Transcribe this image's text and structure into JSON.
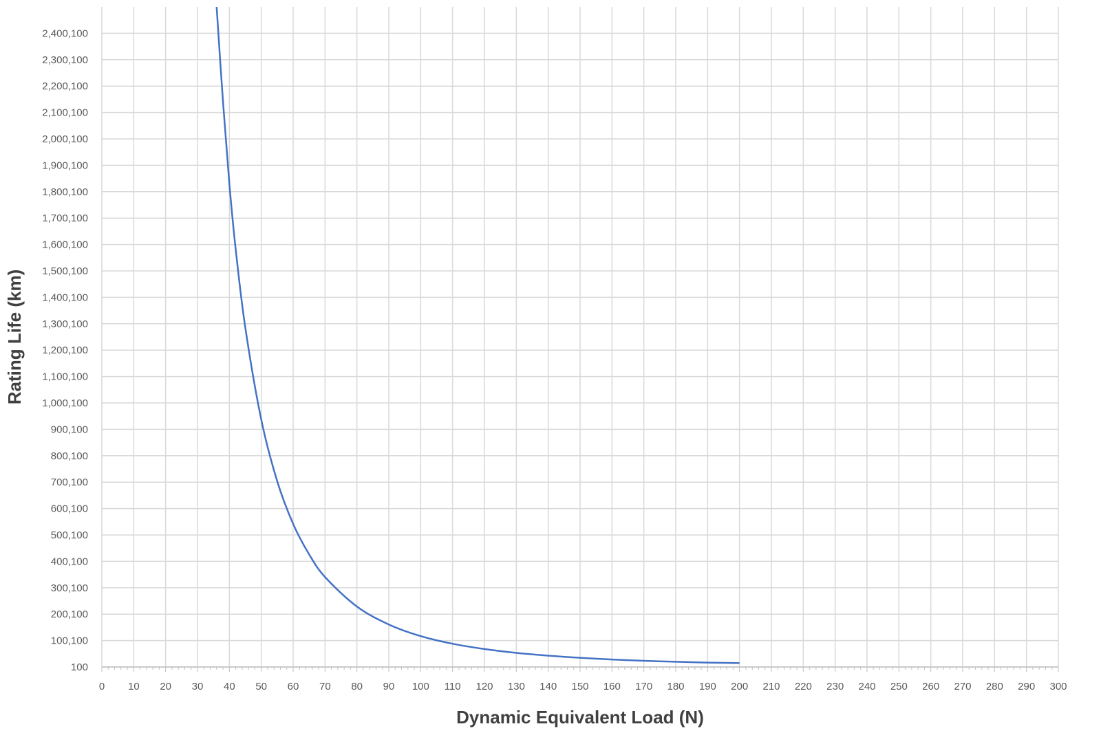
{
  "chart_data": {
    "type": "line",
    "title": "",
    "xlabel": "Dynamic Equivalent Load (N)",
    "ylabel": "Rating Life (km)",
    "xlim": [
      0,
      300
    ],
    "ylim": [
      100,
      2500100
    ],
    "x_ticks": [
      "0",
      "10",
      "20",
      "30",
      "40",
      "50",
      "60",
      "70",
      "80",
      "90",
      "100",
      "110",
      "120",
      "130",
      "140",
      "150",
      "160",
      "170",
      "180",
      "190",
      "200",
      "210",
      "220",
      "230",
      "240",
      "250",
      "260",
      "270",
      "280",
      "290",
      "300"
    ],
    "y_ticks": [
      "100",
      "100,100",
      "200,100",
      "300,100",
      "400,100",
      "500,100",
      "600,100",
      "700,100",
      "800,100",
      "900,100",
      "1,000,100",
      "1,100,100",
      "1,200,100",
      "1,300,100",
      "1,400,100",
      "1,500,100",
      "1,600,100",
      "1,700,100",
      "1,800,100",
      "1,900,100",
      "2,000,100",
      "2,100,100",
      "2,200,100",
      "2,300,100",
      "2,400,100"
    ],
    "grid": true,
    "legend": "none",
    "series": [
      {
        "color": "#4472c4",
        "x": [
          36,
          38,
          40,
          42,
          45,
          50,
          55,
          60,
          65,
          70,
          80,
          90,
          100,
          110,
          120,
          130,
          140,
          150,
          160,
          170,
          180,
          190,
          200
        ],
        "y": [
          2500000,
          2140000,
          1830000,
          1580000,
          1285000,
          937000,
          704000,
          542000,
          427000,
          341000,
          229000,
          161000,
          117000,
          88000,
          68000,
          53500,
          43000,
          35000,
          28500,
          23500,
          19800,
          16800,
          14600
        ]
      }
    ]
  }
}
